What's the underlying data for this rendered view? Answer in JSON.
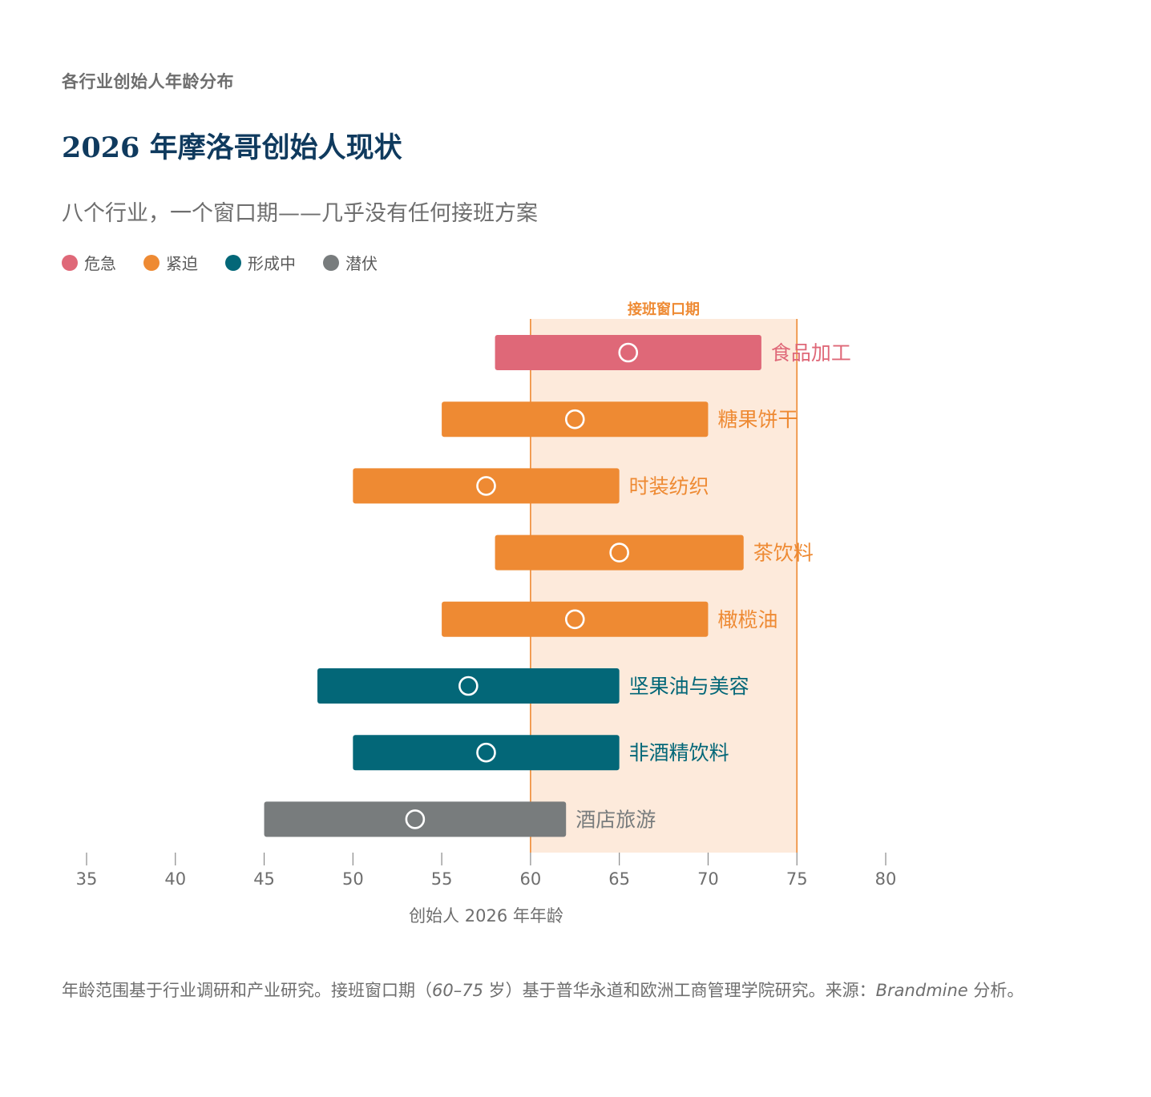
{
  "header": {
    "kicker": "各行业创始人年龄分布",
    "title": "2026 年摩洛哥创始人现状",
    "subtitle": "八个行业，一个窗口期——几乎没有任何接班方案"
  },
  "legend": [
    {
      "label": "危急",
      "color": "#df6878"
    },
    {
      "label": "紧迫",
      "color": "#ee8a33"
    },
    {
      "label": "形成中",
      "color": "#036778"
    },
    {
      "label": "潜伏",
      "color": "#787c7d"
    }
  ],
  "chart_data": {
    "type": "range-bar",
    "xlabel": "创始人 2026 年年龄",
    "xlim": [
      35,
      80
    ],
    "ticks": [
      35,
      40,
      45,
      50,
      55,
      60,
      65,
      70,
      75,
      80
    ],
    "window": {
      "label": "接班窗口期",
      "start": 60,
      "end": 75
    },
    "series": [
      {
        "name": "食品加工",
        "start": 58,
        "end": 73,
        "marker": 65.5,
        "status": "危急",
        "color": "#df6878"
      },
      {
        "name": "糖果饼干",
        "start": 55,
        "end": 70,
        "marker": 62.5,
        "status": "紧迫",
        "color": "#ee8a33"
      },
      {
        "name": "时装纺织",
        "start": 50,
        "end": 65,
        "marker": 57.5,
        "status": "紧迫",
        "color": "#ee8a33"
      },
      {
        "name": "茶饮料",
        "start": 58,
        "end": 72,
        "marker": 65,
        "status": "紧迫",
        "color": "#ee8a33"
      },
      {
        "name": "橄榄油",
        "start": 55,
        "end": 70,
        "marker": 62.5,
        "status": "紧迫",
        "color": "#ee8a33"
      },
      {
        "name": "坚果油与美容",
        "start": 48,
        "end": 65,
        "marker": 56.5,
        "status": "形成中",
        "color": "#036778"
      },
      {
        "name": "非酒精饮料",
        "start": 50,
        "end": 65,
        "marker": 57.5,
        "status": "形成中",
        "color": "#036778"
      },
      {
        "name": "酒店旅游",
        "start": 45,
        "end": 62,
        "marker": 53.5,
        "status": "潜伏",
        "color": "#787c7d"
      }
    ],
    "window_fill": "#fdeadb",
    "window_line": "#ee8a33"
  },
  "footnote": {
    "text_a": "年龄范围基于行业调研和产业研究。接班窗口期（",
    "range": "60–75",
    "text_b": " 岁）基于普华永道和欧洲工商管理学院研究。来源：",
    "source": "Brandmine",
    "text_c": " 分析。"
  }
}
